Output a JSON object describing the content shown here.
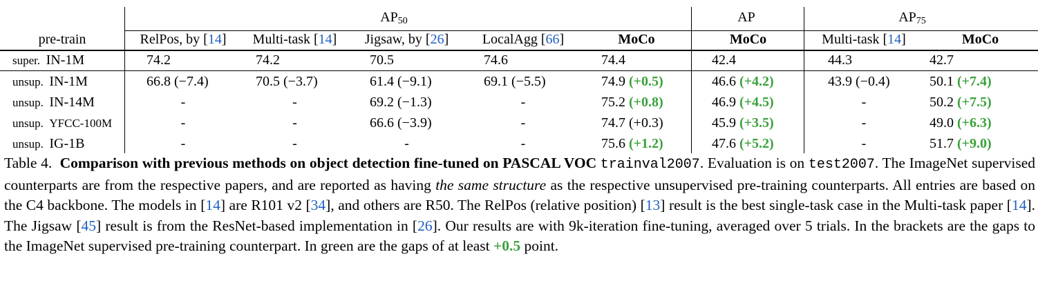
{
  "header": {
    "pretrain": "pre-train",
    "group_ap50": "AP",
    "group_ap50_sub": "50",
    "group_ap": "AP",
    "group_ap75": "AP",
    "group_ap75_sub": "75",
    "cols": [
      {
        "name": "RelPos, by [",
        "ref": "14",
        "close": "]"
      },
      {
        "name": "Multi-task [",
        "ref": "14",
        "close": "]"
      },
      {
        "name": "Jigsaw, by [",
        "ref": "26",
        "close": "]"
      },
      {
        "name": "LocalAgg [",
        "ref": "66",
        "close": "]"
      },
      {
        "name": "MoCo"
      },
      {
        "name": "MoCo"
      },
      {
        "name": "Multi-task [",
        "ref": "14",
        "close": "]"
      },
      {
        "name": "MoCo"
      }
    ]
  },
  "rows": [
    {
      "label1": "super.",
      "label2": "IN-1M",
      "cells": [
        [
          "74.2",
          ""
        ],
        [
          "74.2",
          ""
        ],
        [
          "70.5",
          ""
        ],
        [
          "74.6",
          ""
        ],
        [
          "74.4",
          ""
        ],
        [
          "42.4",
          ""
        ],
        [
          "44.3",
          ""
        ],
        [
          "42.7",
          ""
        ]
      ]
    },
    {
      "label1": "unsup.",
      "label2": "IN-1M",
      "cells": [
        [
          "66.8",
          "(−7.4)"
        ],
        [
          "70.5",
          "(−3.7)"
        ],
        [
          "61.4",
          "(−9.1)"
        ],
        [
          "69.1",
          "(−5.5)"
        ],
        [
          "74.9",
          "(+0.5)"
        ],
        [
          "46.6",
          "(+4.2)"
        ],
        [
          "43.9",
          "(−0.4)"
        ],
        [
          "50.1",
          "(+7.4)"
        ]
      ]
    },
    {
      "label1": "unsup.",
      "label2": "IN-14M",
      "cells": [
        [
          "-",
          ""
        ],
        [
          "-",
          ""
        ],
        [
          "69.2",
          "(−1.3)"
        ],
        [
          "-",
          ""
        ],
        [
          "75.2",
          "(+0.8)"
        ],
        [
          "46.9",
          "(+4.5)"
        ],
        [
          "-",
          ""
        ],
        [
          "50.2",
          "(+7.5)"
        ]
      ]
    },
    {
      "label1": "unsup.",
      "label2": "YFCC-100M",
      "cells": [
        [
          "-",
          ""
        ],
        [
          "-",
          ""
        ],
        [
          "66.6",
          "(−3.9)"
        ],
        [
          "-",
          ""
        ],
        [
          "74.7",
          "(+0.3)"
        ],
        [
          "45.9",
          "(+3.5)"
        ],
        [
          "-",
          ""
        ],
        [
          "49.0",
          "(+6.3)"
        ]
      ]
    },
    {
      "label1": "unsup.",
      "label2": "IG-1B",
      "cells": [
        [
          "-",
          ""
        ],
        [
          "-",
          ""
        ],
        [
          "-",
          ""
        ],
        [
          "-",
          ""
        ],
        [
          "75.6",
          "(+1.2)"
        ],
        [
          "47.6",
          "(+5.2)"
        ],
        [
          "-",
          ""
        ],
        [
          "51.7",
          "(+9.0)"
        ]
      ]
    }
  ],
  "caption": {
    "label": "Table 4.",
    "title": "Comparison with previous methods on object detection fine-tuned on PASCAL VOC",
    "mono1": "trainval2007",
    "t1": ". Evaluation is on",
    "mono2": "test2007",
    "t2": ". The ImageNet supervised counterparts are from the respective papers, and are reported as having",
    "italic": "the same structure",
    "t3": "as the respective unsupervised pre-training counterparts. All entries are based on the C4 backbone. The models in [",
    "r1": "14",
    "t4": "] are R101 v2 [",
    "r2": "34",
    "t5": "], and others are R50. The RelPos (relative position) [",
    "r3": "13",
    "t6": "] result is the best single-task case in the Multi-task paper [",
    "r4": "14",
    "t7": "]. The Jigsaw [",
    "r5": "45",
    "t8": "] result is from the ResNet-based implementation in [",
    "r6": "26",
    "t9": "]. Our results are with 9k-iteration fine-tuning, averaged over 5 trials. In the brackets are the gaps to the ImageNet supervised pre-training counterpart. In green are the gaps of at least",
    "green": "+0.5",
    "t10": "point."
  },
  "colors": {
    "ref": "#1f5fbf",
    "positive_gap": "#3aa13a"
  }
}
